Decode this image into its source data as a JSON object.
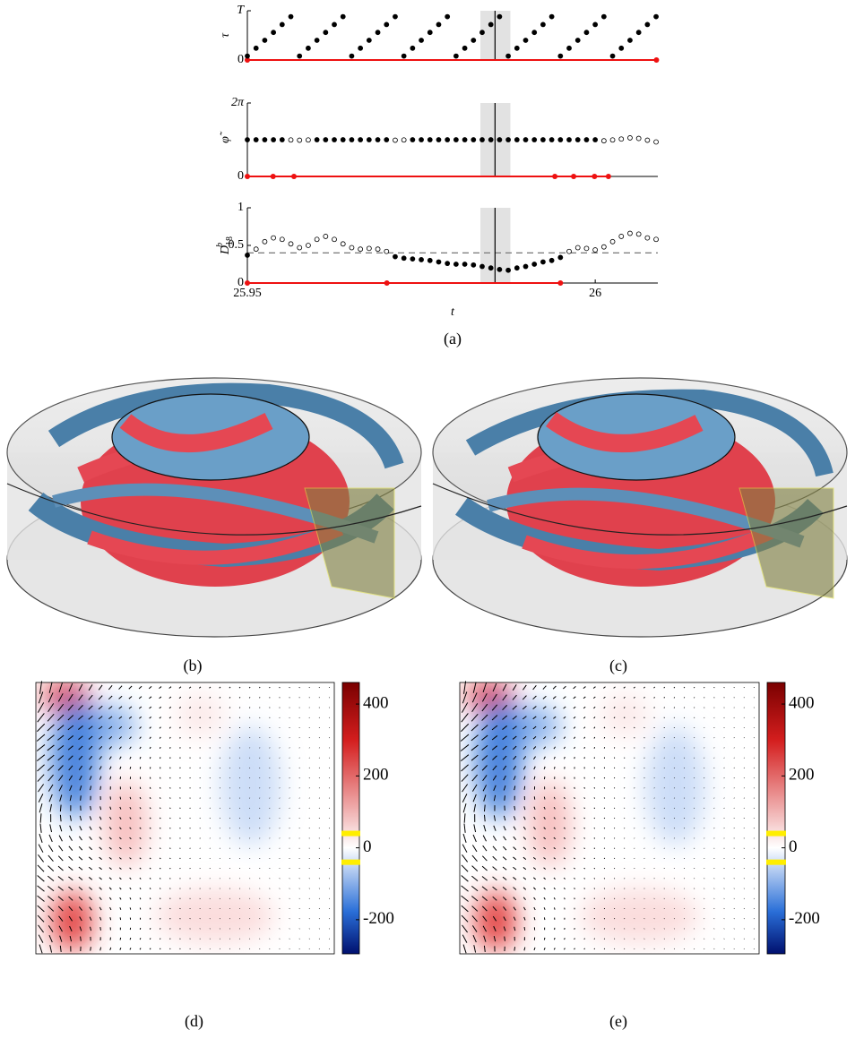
{
  "chart_data": [
    {
      "type": "scatter",
      "ylabel": "τ",
      "x": [
        25.95,
        25.95125,
        25.9525,
        25.95375,
        25.955,
        25.95625,
        25.9575,
        25.95875,
        25.96,
        25.96125,
        25.9625,
        25.96375,
        25.965,
        25.96625,
        25.9675,
        25.96875,
        25.97,
        25.97125,
        25.9725,
        25.97375,
        25.975,
        25.97625,
        25.9775,
        25.97875,
        25.98,
        25.98125,
        25.9825,
        25.98375,
        25.985,
        25.98625,
        25.9875,
        25.98875,
        25.99,
        25.99125,
        25.9925,
        25.99375,
        25.995,
        25.99625,
        25.9975,
        25.99875,
        26.0,
        26.00125,
        26.0025,
        26.00375,
        26.005,
        26.00625,
        26.0075,
        26.00875
      ],
      "series": [
        {
          "color": "#000000",
          "values": [
            0.08,
            0.24,
            0.4,
            0.56,
            0.72,
            0.88,
            0.08,
            0.24,
            0.4,
            0.56,
            0.72,
            0.88,
            0.08,
            0.24,
            0.4,
            0.56,
            0.72,
            0.88,
            0.08,
            0.24,
            0.4,
            0.56,
            0.72,
            0.88,
            0.08,
            0.24,
            0.4,
            0.56,
            0.72,
            0.88,
            0.08,
            0.24,
            0.4,
            0.56,
            0.72,
            0.88,
            0.08,
            0.24,
            0.4,
            0.56,
            0.72,
            0.88,
            0.08,
            0.24,
            0.4,
            0.56,
            0.72,
            0.88
          ]
        }
      ],
      "xlim": [
        25.95,
        26.009
      ],
      "ylim": [
        0,
        1
      ],
      "yticks": [
        0,
        {
          "value": 1,
          "label": "T"
        }
      ],
      "shade": [
        25.9835,
        25.9878
      ],
      "marker_t": 25.9856,
      "events": [
        25.95,
        26.0088
      ],
      "event_color": "#ee1111"
    },
    {
      "type": "scatter",
      "ylabel": "φ̃",
      "x": [
        25.95,
        25.95125,
        25.9525,
        25.95375,
        25.955,
        25.95625,
        25.9575,
        25.95875,
        25.96,
        25.96125,
        25.9625,
        25.96375,
        25.965,
        25.96625,
        25.9675,
        25.96875,
        25.97,
        25.97125,
        25.9725,
        25.97375,
        25.975,
        25.97625,
        25.9775,
        25.97875,
        25.98,
        25.98125,
        25.9825,
        25.98375,
        25.985,
        25.98625,
        25.9875,
        25.98875,
        25.99,
        25.99125,
        25.9925,
        25.99375,
        25.995,
        25.99625,
        25.9975,
        25.99875,
        26.0,
        26.00125,
        26.0025,
        26.00375,
        26.005,
        26.00625,
        26.0075,
        26.00875
      ],
      "series": [
        {
          "color": "#000000",
          "values": [
            3.14,
            3.14,
            3.14,
            3.14,
            3.14,
            null,
            null,
            null,
            3.14,
            3.14,
            3.14,
            3.14,
            3.14,
            3.14,
            3.14,
            3.14,
            3.14,
            null,
            null,
            3.14,
            3.14,
            3.14,
            3.14,
            3.14,
            3.14,
            3.14,
            3.14,
            3.14,
            3.14,
            3.14,
            3.14,
            3.14,
            3.14,
            3.14,
            3.14,
            3.14,
            3.14,
            3.14,
            3.14,
            3.14,
            3.14,
            null,
            null,
            null,
            null,
            null,
            null,
            null
          ]
        },
        {
          "color": "#ffffff",
          "values": [
            null,
            null,
            null,
            null,
            null,
            3.12,
            3.1,
            3.12,
            null,
            null,
            null,
            null,
            null,
            null,
            null,
            null,
            null,
            3.1,
            3.12,
            null,
            null,
            null,
            null,
            null,
            null,
            null,
            null,
            null,
            null,
            null,
            null,
            null,
            null,
            null,
            null,
            null,
            null,
            null,
            null,
            null,
            null,
            3.05,
            3.12,
            3.2,
            3.3,
            3.25,
            3.1,
            2.95
          ]
        }
      ],
      "xlim": [
        25.95,
        26.009
      ],
      "ylim": [
        0,
        6.283
      ],
      "yticks": [
        0,
        {
          "value": 6.283,
          "label": "2π"
        }
      ],
      "shade": [
        25.9835,
        25.9878
      ],
      "marker_t": 25.9856,
      "events": [
        25.95,
        25.9537,
        25.9567,
        25.9942,
        25.9969,
        25.9999,
        26.0019
      ],
      "event_color": "#ee1111"
    },
    {
      "type": "scatter",
      "ylabel": "D",
      "ylabel_sub": "18",
      "ylabel_sup": "b",
      "xlabel": "t",
      "caption": "(a)",
      "x": [
        25.95,
        25.95125,
        25.9525,
        25.95375,
        25.955,
        25.95625,
        25.9575,
        25.95875,
        25.96,
        25.96125,
        25.9625,
        25.96375,
        25.965,
        25.96625,
        25.9675,
        25.96875,
        25.97,
        25.97125,
        25.9725,
        25.97375,
        25.975,
        25.97625,
        25.9775,
        25.97875,
        25.98,
        25.98125,
        25.9825,
        25.98375,
        25.985,
        25.98625,
        25.9875,
        25.98875,
        25.99,
        25.99125,
        25.9925,
        25.99375,
        25.995,
        25.99625,
        25.9975,
        25.99875,
        26.0,
        26.00125,
        26.0025,
        26.00375,
        26.005,
        26.00625,
        26.0075,
        26.00875
      ],
      "series": [
        {
          "color": "#000000",
          "values": [
            0.37,
            null,
            null,
            null,
            null,
            null,
            null,
            null,
            null,
            null,
            null,
            null,
            null,
            null,
            null,
            null,
            null,
            0.35,
            0.33,
            0.32,
            0.31,
            0.3,
            0.28,
            0.26,
            0.25,
            0.25,
            0.24,
            0.22,
            0.2,
            0.18,
            0.17,
            0.2,
            0.22,
            0.25,
            0.28,
            0.3,
            0.34,
            null,
            null,
            null,
            null,
            null,
            null,
            null,
            null,
            null,
            null,
            null
          ]
        },
        {
          "color": "#ffffff",
          "values": [
            null,
            0.45,
            0.55,
            0.6,
            0.58,
            0.52,
            0.47,
            0.5,
            0.58,
            0.62,
            0.58,
            0.52,
            0.47,
            0.45,
            0.46,
            0.45,
            0.42,
            null,
            null,
            null,
            null,
            null,
            null,
            null,
            null,
            null,
            null,
            null,
            null,
            null,
            null,
            null,
            null,
            null,
            null,
            null,
            null,
            0.42,
            0.47,
            0.46,
            0.44,
            0.48,
            0.55,
            0.62,
            0.66,
            0.65,
            0.6,
            0.58
          ]
        }
      ],
      "xlim": [
        25.95,
        26.009
      ],
      "ylim": [
        0,
        1
      ],
      "yticks": [
        0,
        0.5,
        1
      ],
      "xticks": [
        25.95,
        26
      ],
      "threshold": 0.4,
      "shade": [
        25.9835,
        25.9878
      ],
      "marker_t": 25.9856,
      "events": [
        25.95,
        25.97005,
        25.995
      ],
      "event_color": "#ee1111"
    },
    {
      "type": "heatmap",
      "caption": "(d)",
      "clim": [
        -295,
        460
      ],
      "colorbar_ticks": [
        400,
        200,
        0,
        -200
      ],
      "highlight_levels": [
        40,
        -40
      ],
      "highlight_color": "#ffee00"
    },
    {
      "type": "heatmap",
      "caption": "(e)",
      "clim": [
        -295,
        460
      ],
      "colorbar_ticks": [
        400,
        200,
        0,
        -200
      ],
      "highlight_levels": [
        40,
        -40
      ],
      "highlight_color": "#ffee00"
    }
  ],
  "renderings": [
    {
      "caption": "(b)"
    },
    {
      "caption": "(c)"
    }
  ]
}
